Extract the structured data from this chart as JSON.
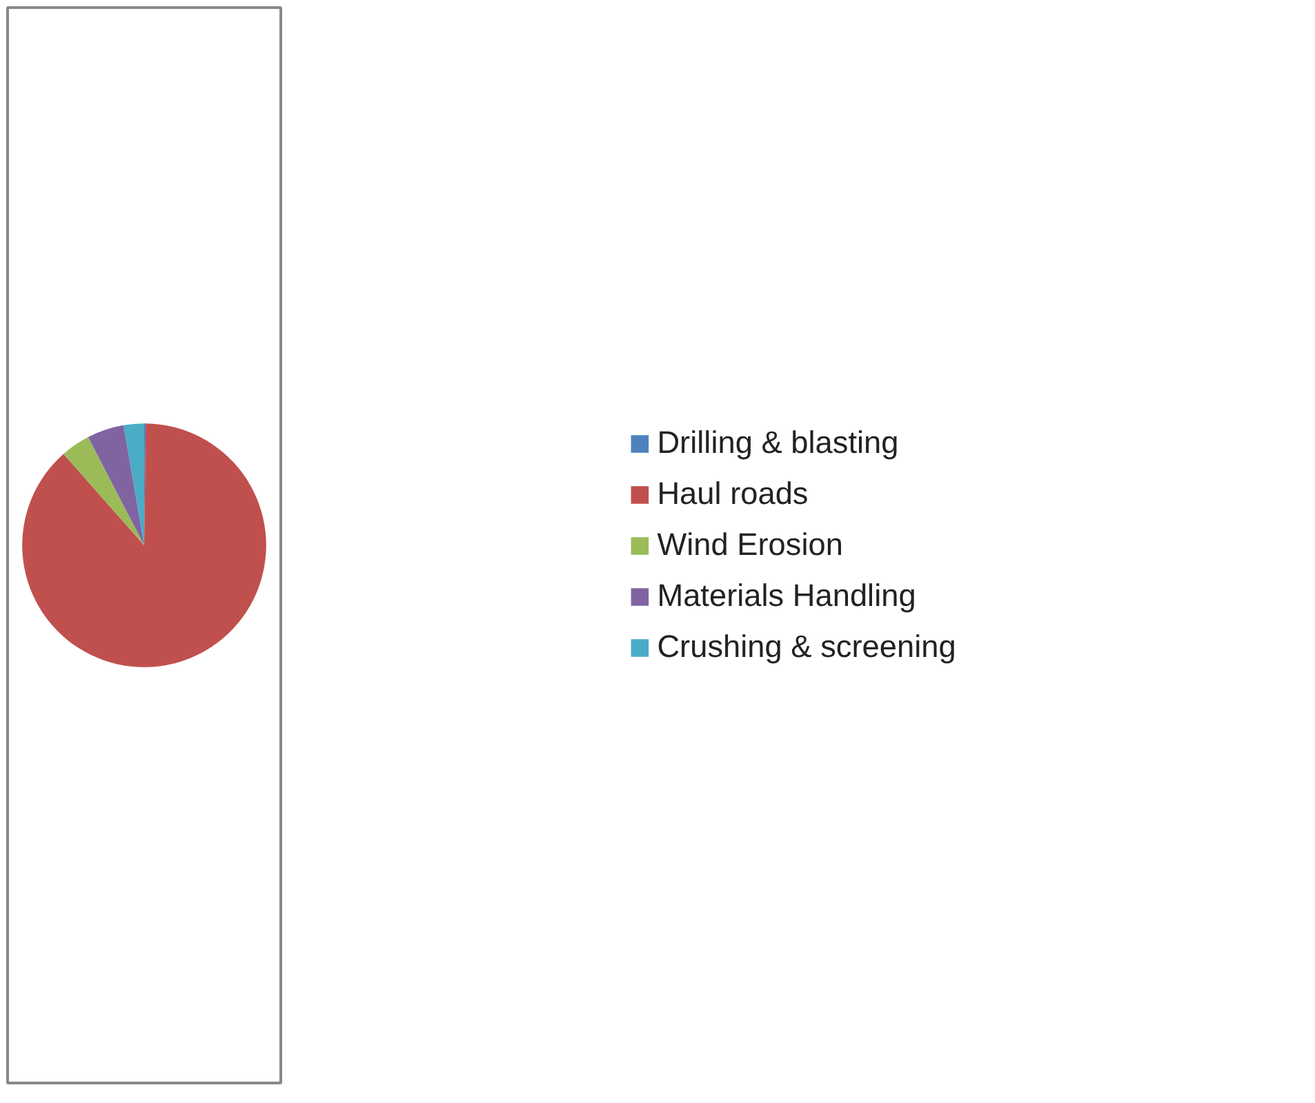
{
  "chart_data": {
    "type": "pie",
    "categories": [
      "Drilling & blasting",
      "Haul roads",
      "Wind Erosion",
      "Materials Handling",
      "Crushing & screening"
    ],
    "values": [
      0.2,
      88.3,
      3.9,
      4.9,
      2.7
    ],
    "colors": [
      "#4f81bd",
      "#c0504d",
      "#9bbb59",
      "#8064a2",
      "#4bacc6"
    ],
    "legend": "right"
  }
}
